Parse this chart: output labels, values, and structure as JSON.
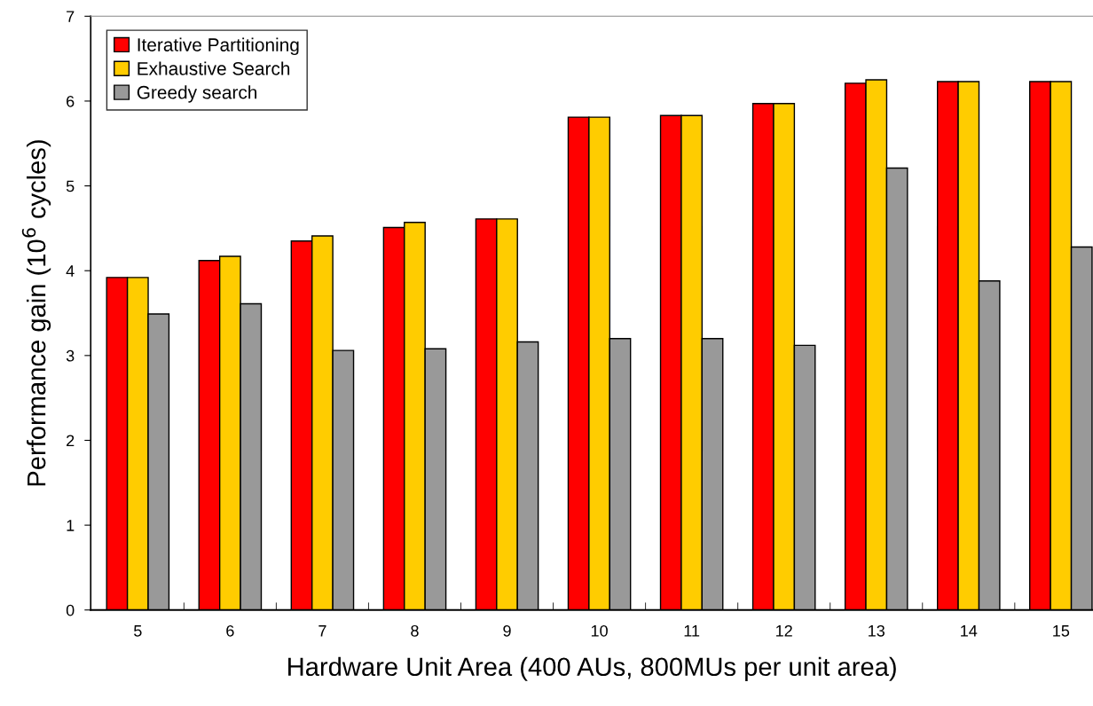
{
  "chart_data": {
    "type": "bar",
    "xlabel": "Hardware Unit Area (400 AUs, 800MUs per unit area)",
    "ylabel": "Performance gain (10$^{6}$ cycles)",
    "categories": [
      "5",
      "6",
      "7",
      "8",
      "9",
      "10",
      "11",
      "12",
      "13",
      "14",
      "15"
    ],
    "series": [
      {
        "name": "Iterative Partitioning",
        "color": "#ff0000",
        "values": [
          3.92,
          4.12,
          4.35,
          4.51,
          4.61,
          5.81,
          5.83,
          5.97,
          6.21,
          6.23,
          6.23
        ]
      },
      {
        "name": "Exhaustive Search",
        "color": "#ffcc00",
        "values": [
          3.92,
          4.17,
          4.41,
          4.57,
          4.61,
          5.81,
          5.83,
          5.97,
          6.25,
          6.23,
          6.23
        ]
      },
      {
        "name": "Greedy search",
        "color": "#999999",
        "values": [
          3.49,
          3.61,
          3.06,
          3.08,
          3.16,
          3.2,
          3.2,
          3.12,
          5.21,
          3.88,
          4.28
        ]
      }
    ],
    "ylim": [
      0,
      7
    ],
    "yticks": [
      0,
      1,
      2,
      3,
      4,
      5,
      6,
      7
    ],
    "grid": false,
    "legend": "top left"
  }
}
